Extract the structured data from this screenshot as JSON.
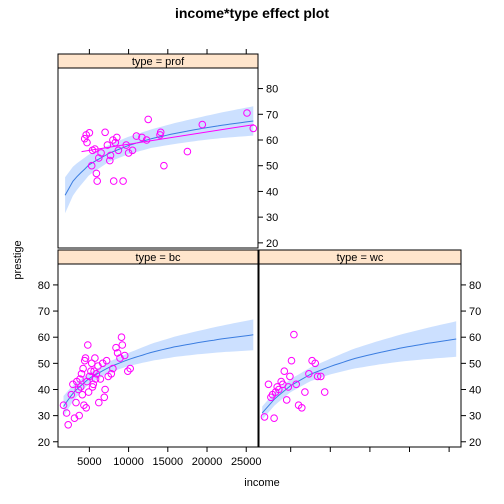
{
  "chart_data": {
    "type": "scatter",
    "title": "income*type effect plot",
    "xlabel": "income",
    "ylabel": "prestige",
    "xlim": [
      1000,
      26500
    ],
    "ylim": [
      18,
      88
    ],
    "x_ticks": [
      5000,
      10000,
      15000,
      20000,
      25000
    ],
    "x_tick_labels": [
      "5000",
      "10000",
      "15000",
      "20000",
      "25000"
    ],
    "y_ticks": [
      20,
      30,
      40,
      50,
      60,
      70,
      80
    ],
    "y_tick_labels": [
      "20",
      "30",
      "40",
      "50",
      "60",
      "70",
      "80"
    ],
    "colors": {
      "points": "#ff00ff",
      "fit": "#3b7de0",
      "band": "#cce0ff",
      "strip": "#ffe5cc",
      "frame": "#000000"
    },
    "panels": [
      {
        "label": "type = prof",
        "fit": {
          "x": [
            1900,
            3000,
            5000,
            7500,
            10000,
            13000,
            16000,
            19000,
            22000,
            25900
          ],
          "y": [
            38.5,
            44.5,
            50.5,
            54.8,
            57.9,
            60.6,
            62.6,
            64.3,
            65.8,
            67.4
          ]
        },
        "band_lower": [
          31.5,
          39,
          46.5,
          51.5,
          54.5,
          57,
          58.5,
          59.8,
          60.8,
          61.7
        ],
        "band_upper": [
          45.5,
          50,
          54.5,
          58.1,
          61.3,
          64.2,
          66.7,
          68.8,
          70.8,
          73.1
        ],
        "trend": {
          "x": [
            4000,
            26000
          ],
          "y": [
            55.5,
            66
          ]
        },
        "points": [
          [
            4400,
            60.5
          ],
          [
            4600,
            62
          ],
          [
            4700,
            59
          ],
          [
            5000,
            62.8
          ],
          [
            5300,
            50
          ],
          [
            5400,
            56
          ],
          [
            5700,
            56.5
          ],
          [
            5900,
            47
          ],
          [
            6000,
            44
          ],
          [
            6200,
            53
          ],
          [
            6500,
            55
          ],
          [
            7000,
            63
          ],
          [
            7300,
            58
          ],
          [
            7600,
            52
          ],
          [
            7700,
            54
          ],
          [
            8000,
            60
          ],
          [
            8100,
            44
          ],
          [
            8300,
            59
          ],
          [
            8500,
            61
          ],
          [
            8700,
            56
          ],
          [
            9300,
            44
          ],
          [
            9700,
            58
          ],
          [
            10000,
            55
          ],
          [
            10500,
            56
          ],
          [
            11000,
            61.5
          ],
          [
            11700,
            61
          ],
          [
            12300,
            60
          ],
          [
            12500,
            68
          ],
          [
            14000,
            62
          ],
          [
            14100,
            63
          ],
          [
            14500,
            50
          ],
          [
            17500,
            55.5
          ],
          [
            19400,
            66
          ],
          [
            25100,
            70.5
          ],
          [
            25900,
            64.5
          ]
        ]
      },
      {
        "label": "type = bc",
        "fit": {
          "x": [
            1700,
            3000,
            5000,
            7500,
            10000,
            13000,
            16000,
            19000,
            22000,
            25900
          ],
          "y": [
            33.5,
            39,
            44.3,
            48.5,
            51.5,
            54.3,
            56.4,
            58,
            59.4,
            60.9
          ]
        },
        "band_lower": [
          29.5,
          36,
          42.3,
          46.4,
          49,
          51,
          52.5,
          53.5,
          54.3,
          55
        ],
        "band_upper": [
          37.5,
          42,
          46.3,
          50.6,
          54,
          57.6,
          60.3,
          62.5,
          64.5,
          66.8
        ],
        "points": [
          [
            1700,
            34
          ],
          [
            2100,
            31
          ],
          [
            2300,
            26.5
          ],
          [
            2700,
            38
          ],
          [
            2900,
            42
          ],
          [
            3100,
            29
          ],
          [
            3300,
            35
          ],
          [
            3400,
            43
          ],
          [
            3600,
            40
          ],
          [
            3700,
            30
          ],
          [
            3800,
            44
          ],
          [
            3900,
            41
          ],
          [
            4000,
            46
          ],
          [
            4100,
            38
          ],
          [
            4200,
            48
          ],
          [
            4300,
            34
          ],
          [
            4400,
            51
          ],
          [
            4500,
            52
          ],
          [
            4600,
            33
          ],
          [
            4700,
            43
          ],
          [
            4800,
            57
          ],
          [
            4900,
            39
          ],
          [
            5000,
            45
          ],
          [
            5200,
            47
          ],
          [
            5300,
            50
          ],
          [
            5400,
            41
          ],
          [
            5500,
            42
          ],
          [
            5600,
            47
          ],
          [
            5700,
            52
          ],
          [
            5800,
            44
          ],
          [
            5900,
            46
          ],
          [
            6100,
            49
          ],
          [
            6200,
            35
          ],
          [
            6400,
            44
          ],
          [
            6700,
            50
          ],
          [
            6900,
            37
          ],
          [
            7000,
            40
          ],
          [
            7200,
            51
          ],
          [
            7400,
            45
          ],
          [
            7800,
            46
          ],
          [
            8000,
            48
          ],
          [
            8400,
            56
          ],
          [
            8600,
            54
          ],
          [
            8900,
            52
          ],
          [
            9100,
            60
          ],
          [
            9200,
            57
          ],
          [
            9500,
            53
          ],
          [
            9900,
            47
          ],
          [
            10200,
            48
          ]
        ]
      },
      {
        "label": "type = wc",
        "fit": {
          "x": [
            1400,
            3000,
            5000,
            7500,
            10000,
            13000,
            16000,
            19000,
            22000,
            25900
          ],
          "y": [
            31,
            36.5,
            41.5,
            45.8,
            48.8,
            51.8,
            54,
            55.9,
            57.5,
            59.3
          ]
        },
        "band_lower": [
          28.5,
          34,
          39,
          43.2,
          45.8,
          48,
          49.5,
          50.7,
          51.6,
          52.5
        ],
        "band_upper": [
          33.5,
          39,
          44,
          48.4,
          51.8,
          55.6,
          58.5,
          61.1,
          63.4,
          66.1
        ],
        "points": [
          [
            1700,
            29.5
          ],
          [
            2200,
            42
          ],
          [
            2500,
            37
          ],
          [
            2700,
            38
          ],
          [
            2900,
            29
          ],
          [
            3100,
            39
          ],
          [
            3300,
            41
          ],
          [
            3500,
            40
          ],
          [
            3800,
            43
          ],
          [
            4000,
            42
          ],
          [
            4200,
            47
          ],
          [
            4500,
            36
          ],
          [
            4700,
            41
          ],
          [
            4900,
            45
          ],
          [
            5100,
            51
          ],
          [
            5400,
            61
          ],
          [
            5700,
            42
          ],
          [
            6000,
            34
          ],
          [
            6400,
            33
          ],
          [
            6800,
            39
          ],
          [
            7300,
            46
          ],
          [
            7700,
            51
          ],
          [
            8100,
            50
          ],
          [
            8400,
            45
          ],
          [
            8800,
            45
          ],
          [
            9300,
            39
          ]
        ]
      }
    ]
  }
}
